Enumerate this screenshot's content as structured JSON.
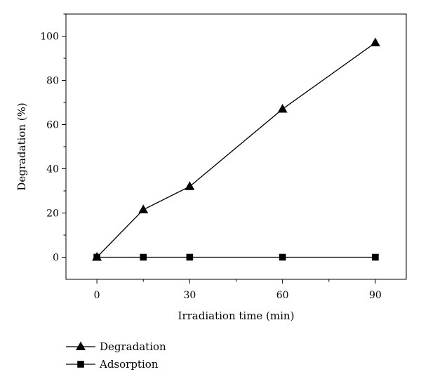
{
  "chart_data": {
    "type": "line",
    "title": "",
    "xlabel": "Irradiation time (min)",
    "ylabel": "Degradation (%)",
    "xlim": [
      -10,
      100
    ],
    "ylim": [
      -10,
      110
    ],
    "xticks": [
      0,
      30,
      60,
      90
    ],
    "yticks": [
      0,
      20,
      40,
      60,
      80,
      100
    ],
    "x_minor_step": 15,
    "y_minor_step": 10,
    "grid": false,
    "legend_position": "bottom-left, below plot",
    "series": [
      {
        "name": "Degradation",
        "marker": "triangle",
        "color": "#000000",
        "x": [
          0,
          15,
          30,
          60,
          90
        ],
        "y": [
          0,
          21.5,
          32,
          67,
          97
        ]
      },
      {
        "name": "Adsorption",
        "marker": "square",
        "color": "#000000",
        "x": [
          0,
          15,
          30,
          60,
          90
        ],
        "y": [
          0,
          0,
          0,
          0,
          0
        ]
      }
    ]
  }
}
